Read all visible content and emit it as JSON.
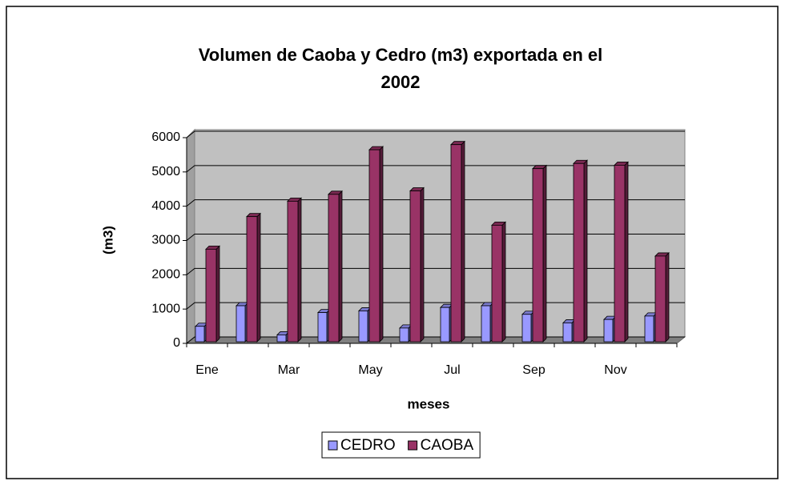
{
  "chart_data": {
    "type": "bar",
    "title": "Volumen de Caoba y Cedro (m3) exportada en el 2002",
    "x_label": "meses",
    "y_label": "(m3)",
    "categories": [
      "Ene",
      null,
      "Mar",
      null,
      "May",
      null,
      "Jul",
      null,
      "Sep",
      null,
      "Nov",
      null
    ],
    "series": [
      {
        "name": "CEDRO",
        "color": "#9999ff",
        "values": [
          450,
          1050,
          200,
          850,
          900,
          400,
          1000,
          1050,
          800,
          550,
          650,
          750
        ]
      },
      {
        "name": "CAOBA",
        "color": "#993366",
        "values": [
          2700,
          3650,
          4100,
          4300,
          5600,
          4400,
          5750,
          3400,
          5050,
          5200,
          5150,
          2500
        ]
      }
    ],
    "ylim": [
      0,
      6000
    ],
    "yticks": [
      0,
      1000,
      2000,
      3000,
      4000,
      5000,
      6000
    ],
    "grid": true,
    "legend": "bottom"
  }
}
